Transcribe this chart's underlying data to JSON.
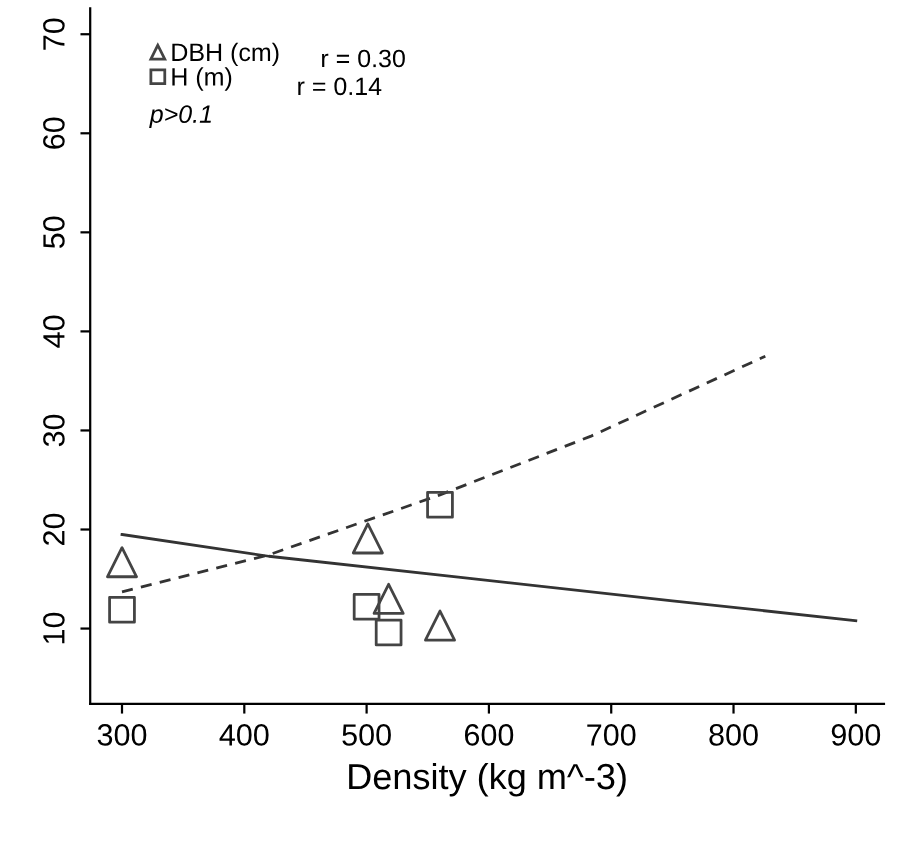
{
  "chart_data": {
    "type": "scatter",
    "xlabel": "Density (kg m^-3)",
    "series": [
      {
        "name": "DBH (cm)",
        "marker": "triangle",
        "color": "#444444",
        "x": [
          300,
          501,
          518,
          560
        ],
        "values": [
          16.7,
          19.1,
          13.0,
          10.3
        ]
      },
      {
        "name": "H (m)",
        "marker": "square",
        "color": "#444444",
        "x": [
          300,
          500,
          518,
          560
        ],
        "values": [
          11.9,
          12.2,
          9.6,
          22.5
        ]
      },
      {
        "type": "line",
        "line_style": "solid",
        "color": "#333333",
        "x": [
          300,
          420,
          575,
          750,
          900
        ],
        "values": [
          19.5,
          17.3,
          15.2,
          12.8,
          10.8
        ]
      },
      {
        "type": "line",
        "line_style": "dashed",
        "color": "#333333",
        "x": [
          300,
          419,
          560,
          683,
          826
        ],
        "values": [
          13.7,
          17.4,
          23.5,
          29.4,
          37.5
        ]
      }
    ],
    "annotations": [
      "r = 0.30",
      "r = 0.14",
      "p>0.1"
    ],
    "legend": "top left",
    "grid": false,
    "xlim": [
      274,
      923
    ],
    "ylim": [
      2.4,
      72.6
    ],
    "xticks": [
      300,
      400,
      500,
      600,
      700,
      800,
      900
    ],
    "yticks": [
      10,
      20,
      30,
      40,
      50,
      60,
      70
    ]
  }
}
